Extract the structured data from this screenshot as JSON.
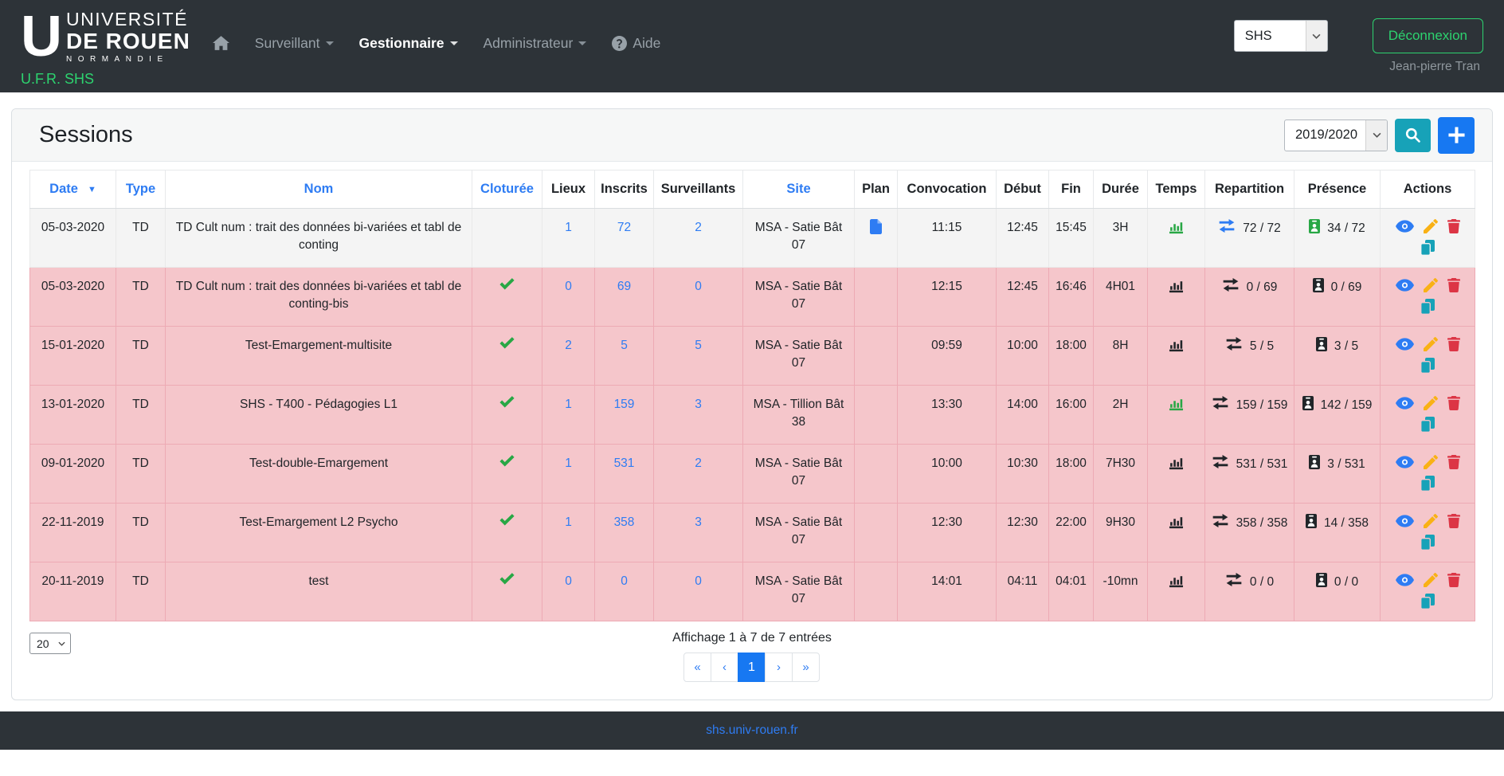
{
  "colors": {
    "navbar_bg": "#2d3338",
    "accent_green": "#2dd36f",
    "link_blue": "#2e7cf3",
    "check_green": "#28a745",
    "closed_row_pink": "#f5c6cb",
    "search_button_teal": "#17a2b8",
    "add_button_blue": "#1778f2",
    "edit_yellow": "#f9b115",
    "delete_red": "#dc3545",
    "duplicate_teal": "#17a2b8"
  },
  "navbar": {
    "logo": {
      "glyph": "U",
      "line1": "UNIVERSITÉ",
      "line2": "DE ROUEN",
      "line3": "NORMANDIE"
    },
    "subtitle": "U.F.R. SHS",
    "menu": {
      "home_icon": "home-icon",
      "items": [
        {
          "label": "Surveillant",
          "caret": true,
          "active": false
        },
        {
          "label": "Gestionnaire",
          "caret": true,
          "active": true
        },
        {
          "label": "Administrateur",
          "caret": true,
          "active": false
        },
        {
          "label": "Aide",
          "caret": false,
          "active": false,
          "icon": "question-circle-icon"
        }
      ]
    },
    "unit_select_value": "SHS",
    "logout_label": "Déconnexion",
    "user_name": "Jean-pierre Tran"
  },
  "panel": {
    "title": "Sessions",
    "year_select_value": "2019/2020",
    "search_button_icon": "search-icon",
    "add_button_icon": "plus-icon"
  },
  "table": {
    "columns": [
      {
        "label": "Date",
        "sortable": true,
        "sorted_desc": true
      },
      {
        "label": "Type",
        "sortable": true
      },
      {
        "label": "Nom",
        "sortable": true
      },
      {
        "label": "Cloturée",
        "sortable": true
      },
      {
        "label": "Lieux",
        "sortable": false
      },
      {
        "label": "Inscrits",
        "sortable": false
      },
      {
        "label": "Surveillants",
        "sortable": false
      },
      {
        "label": "Site",
        "sortable": true
      },
      {
        "label": "Plan",
        "sortable": false
      },
      {
        "label": "Convocation",
        "sortable": false
      },
      {
        "label": "Début",
        "sortable": false
      },
      {
        "label": "Fin",
        "sortable": false
      },
      {
        "label": "Durée",
        "sortable": false
      },
      {
        "label": "Temps",
        "sortable": false
      },
      {
        "label": "Repartition",
        "sortable": false
      },
      {
        "label": "Présence",
        "sortable": false
      },
      {
        "label": "Actions",
        "sortable": false
      }
    ],
    "action_icons": [
      "view-icon",
      "edit-icon",
      "delete-icon",
      "duplicate-icon"
    ],
    "cell_icons": {
      "temps": "chart-bar-icon",
      "repartition": "exchange-icon",
      "presence": "id-badge-icon",
      "plan": "file-icon",
      "cloturee": "check-icon"
    },
    "rows": [
      {
        "date": "05-03-2020",
        "type": "TD",
        "nom": "TD Cult num : trait des données bi-variées et tabl de conting",
        "cloturee": false,
        "lieux": "1",
        "inscrits": "72",
        "surveillants": "2",
        "site": "MSA - Satie Bât 07",
        "plan": true,
        "convocation": "11:15",
        "debut": "12:45",
        "fin": "15:45",
        "duree": "3H",
        "temps_icon": "green",
        "repartition": "72 / 72",
        "repartition_icon": "blue",
        "presence": "34 / 72",
        "presence_icon": "green",
        "highlighted": false
      },
      {
        "date": "05-03-2020",
        "type": "TD",
        "nom": "TD Cult num : trait des données bi-variées et tabl de conting-bis",
        "cloturee": true,
        "lieux": "0",
        "inscrits": "69",
        "surveillants": "0",
        "site": "MSA - Satie Bât 07",
        "plan": false,
        "convocation": "12:15",
        "debut": "12:45",
        "fin": "16:46",
        "duree": "4H01",
        "temps_icon": "dark",
        "repartition": "0 / 69",
        "repartition_icon": "dark",
        "presence": "0 / 69",
        "presence_icon": "dark",
        "highlighted": true
      },
      {
        "date": "15-01-2020",
        "type": "TD",
        "nom": "Test-Emargement-multisite",
        "cloturee": true,
        "lieux": "2",
        "inscrits": "5",
        "surveillants": "5",
        "site": "MSA - Satie Bât 07",
        "plan": false,
        "convocation": "09:59",
        "debut": "10:00",
        "fin": "18:00",
        "duree": "8H",
        "temps_icon": "dark",
        "repartition": "5 / 5",
        "repartition_icon": "dark",
        "presence": "3 / 5",
        "presence_icon": "dark",
        "highlighted": true
      },
      {
        "date": "13-01-2020",
        "type": "TD",
        "nom": "SHS - T400 - Pédagogies L1",
        "cloturee": true,
        "lieux": "1",
        "inscrits": "159",
        "surveillants": "3",
        "site": "MSA - Tillion Bât 38",
        "plan": false,
        "convocation": "13:30",
        "debut": "14:00",
        "fin": "16:00",
        "duree": "2H",
        "temps_icon": "green",
        "repartition": "159 / 159",
        "repartition_icon": "dark",
        "presence": "142 / 159",
        "presence_icon": "dark",
        "highlighted": true
      },
      {
        "date": "09-01-2020",
        "type": "TD",
        "nom": "Test-double-Emargement",
        "cloturee": true,
        "lieux": "1",
        "inscrits": "531",
        "surveillants": "2",
        "site": "MSA - Satie Bât 07",
        "plan": false,
        "convocation": "10:00",
        "debut": "10:30",
        "fin": "18:00",
        "duree": "7H30",
        "temps_icon": "dark",
        "repartition": "531 / 531",
        "repartition_icon": "dark",
        "presence": "3 / 531",
        "presence_icon": "dark",
        "highlighted": true
      },
      {
        "date": "22-11-2019",
        "type": "TD",
        "nom": "Test-Emargement L2 Psycho",
        "cloturee": true,
        "lieux": "1",
        "inscrits": "358",
        "surveillants": "3",
        "site": "MSA - Satie Bât 07",
        "plan": false,
        "convocation": "12:30",
        "debut": "12:30",
        "fin": "22:00",
        "duree": "9H30",
        "temps_icon": "dark",
        "repartition": "358 / 358",
        "repartition_icon": "dark",
        "presence": "14 / 358",
        "presence_icon": "dark",
        "highlighted": true
      },
      {
        "date": "20-11-2019",
        "type": "TD",
        "nom": "test",
        "cloturee": true,
        "lieux": "0",
        "inscrits": "0",
        "surveillants": "0",
        "site": "MSA - Satie Bât 07",
        "plan": false,
        "convocation": "14:01",
        "debut": "04:11",
        "fin": "04:01",
        "duree": "-10mn",
        "temps_icon": "dark",
        "repartition": "0 / 0",
        "repartition_icon": "dark",
        "presence": "0 / 0",
        "presence_icon": "dark",
        "highlighted": true
      }
    ]
  },
  "table_footer": {
    "page_size_value": "20",
    "info": "Affichage 1 à 7 de 7 entrées",
    "pagination": {
      "items": [
        "«",
        "‹",
        "1",
        "›",
        "»"
      ],
      "active_index": 2
    }
  },
  "footer": {
    "link_label": "shs.univ-rouen.fr"
  }
}
